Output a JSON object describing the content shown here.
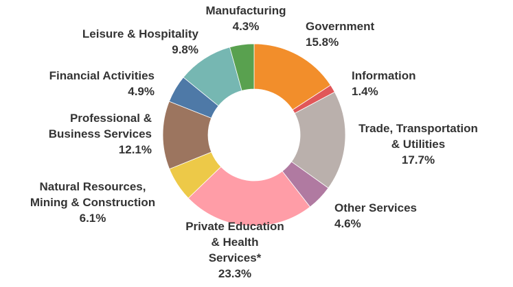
{
  "chart_data": {
    "type": "pie",
    "hole": true,
    "slices": [
      {
        "label": [
          "Government"
        ],
        "value": 15.8,
        "display": "15.8%",
        "color": "#f28e2b"
      },
      {
        "label": [
          "Information"
        ],
        "value": 1.4,
        "display": "1.4%",
        "color": "#e15759"
      },
      {
        "label": [
          "Trade, Transportation",
          "& Utilities"
        ],
        "value": 17.7,
        "display": "17.7%",
        "color": "#bab0ac"
      },
      {
        "label": [
          "Other Services"
        ],
        "value": 4.6,
        "display": "4.6%",
        "color": "#b07aa1"
      },
      {
        "label": [
          "Private Education",
          "& Health",
          "Services*"
        ],
        "value": 23.3,
        "display": "23.3%",
        "color": "#ff9da7"
      },
      {
        "label": [
          "Natural Resources,",
          "Mining & Construction"
        ],
        "value": 6.1,
        "display": "6.1%",
        "color": "#edc948"
      },
      {
        "label": [
          "Professional &",
          "Business Services"
        ],
        "value": 12.1,
        "display": "12.1%",
        "color": "#9c755f"
      },
      {
        "label": [
          "Financial Activities"
        ],
        "value": 4.9,
        "display": "4.9%",
        "color": "#4e79a7"
      },
      {
        "label": [
          "Leisure & Hospitality"
        ],
        "value": 9.8,
        "display": "9.8%",
        "color": "#76b7b2"
      },
      {
        "label": [
          "Manufacturing"
        ],
        "value": 4.3,
        "display": "4.3%",
        "color": "#59a14f"
      }
    ]
  }
}
